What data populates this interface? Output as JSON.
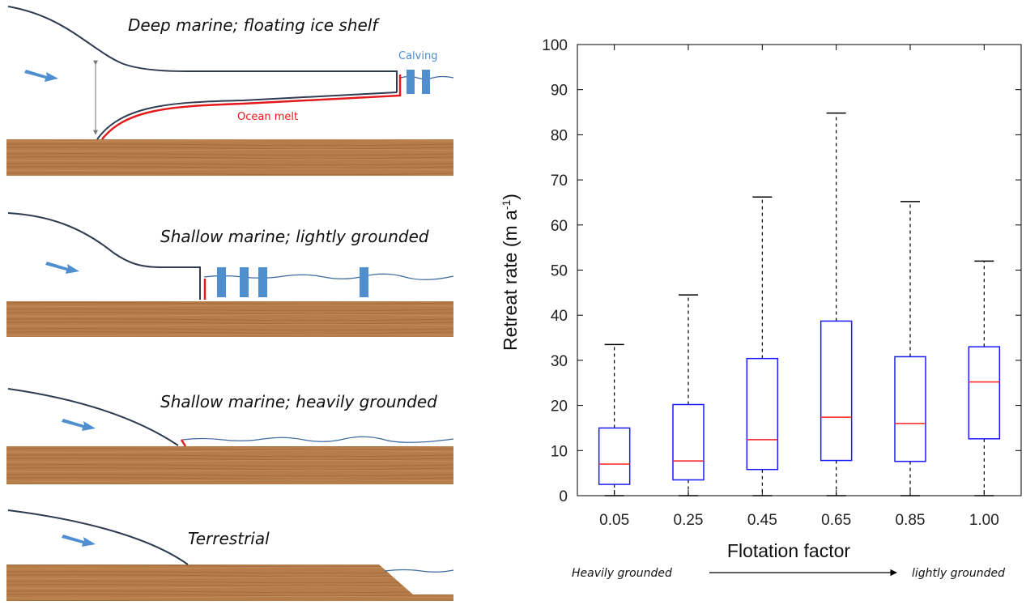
{
  "diagram": {
    "scenarios": [
      {
        "title": "Deep marine; floating ice shelf"
      },
      {
        "title": "Shallow marine; lightly grounded"
      },
      {
        "title": "Shallow marine; heavily grounded"
      },
      {
        "title": "Terrestrial"
      }
    ],
    "labels": {
      "calving": "Calving",
      "ocean_melt": "Ocean melt"
    },
    "colors": {
      "ice_outline": "#2f3b50",
      "melt": "#e31a1c",
      "calving_block": "#4f8fcf",
      "arrow": "#4f8fcf",
      "water": "#3d6aa0",
      "bed": "#b67c49"
    }
  },
  "chart_data": {
    "type": "box",
    "xlabel": "Flotation factor",
    "ylabel": "Retreat rate (m a",
    "ylabel_sup": "-1",
    "ylabel_close": ")",
    "ylim": [
      0,
      100
    ],
    "yticks": [
      0,
      10,
      20,
      30,
      40,
      50,
      60,
      70,
      80,
      90,
      100
    ],
    "categories": [
      "0.05",
      "0.25",
      "0.45",
      "0.65",
      "0.85",
      "1.00"
    ],
    "boxes": [
      {
        "min": 0,
        "q1": 2.5,
        "median": 7,
        "q3": 15,
        "max": 33.5
      },
      {
        "min": 0,
        "q1": 3.5,
        "median": 7.7,
        "q3": 20.2,
        "max": 44.5
      },
      {
        "min": 0,
        "q1": 5.8,
        "median": 12.4,
        "q3": 30.4,
        "max": 66.2
      },
      {
        "min": 0,
        "q1": 7.8,
        "median": 17.4,
        "q3": 38.7,
        "max": 84.8
      },
      {
        "min": 0,
        "q1": 7.6,
        "median": 16,
        "q3": 30.8,
        "max": 65.2
      },
      {
        "min": 0,
        "q1": 12.6,
        "median": 25.2,
        "q3": 33,
        "max": 52
      }
    ],
    "range_left": "Heavily grounded",
    "range_right": "lightly grounded",
    "colors": {
      "box": "#1a1aff",
      "median": "#ff2020",
      "whisker": "#000000"
    }
  }
}
